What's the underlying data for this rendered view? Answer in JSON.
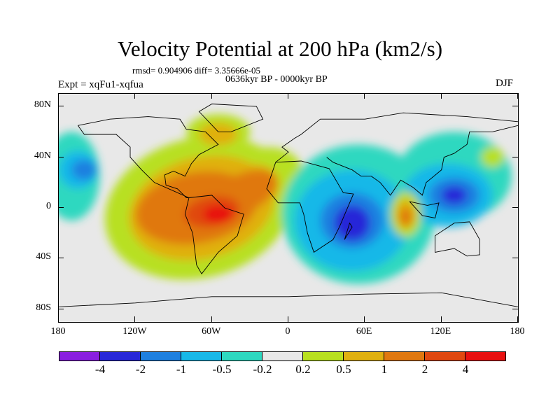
{
  "title": "Velocity Potential at 200 hPa (km2/s)",
  "stats": "rmsd= 0.904906 diff= 3.35666e-05",
  "period": "0636kyr BP - 0000kyr BP",
  "experiment": "Expt = xqFu1-xqfua",
  "season": "DJF",
  "chart_data": {
    "type": "heatmap",
    "title": "Velocity Potential at 200 hPa (km2/s)",
    "projection": "cylindrical equidistant",
    "xlabel": "",
    "ylabel": "",
    "xlim": [
      -180,
      180
    ],
    "ylim": [
      -90,
      90
    ],
    "x_ticks": [
      {
        "value": -180,
        "label": "180"
      },
      {
        "value": -120,
        "label": "120W"
      },
      {
        "value": -60,
        "label": "60W"
      },
      {
        "value": 0,
        "label": "0"
      },
      {
        "value": 60,
        "label": "60E"
      },
      {
        "value": 120,
        "label": "120E"
      },
      {
        "value": 180,
        "label": "180"
      }
    ],
    "y_ticks": [
      {
        "value": 80,
        "label": "80N"
      },
      {
        "value": 40,
        "label": "40N"
      },
      {
        "value": 0,
        "label": "0"
      },
      {
        "value": -40,
        "label": "40S"
      },
      {
        "value": -80,
        "label": "80S"
      }
    ],
    "contour_levels": [
      -4,
      -2,
      -1,
      -0.5,
      -0.2,
      0.2,
      0.5,
      1,
      2,
      4
    ],
    "colorbar_labels": [
      "-4",
      "-2",
      "-1",
      "-0.5",
      "-0.2",
      "0.2",
      "0.5",
      "1",
      "2",
      "4"
    ],
    "colors": [
      "#8a1fe0",
      "#2828d8",
      "#1e80e0",
      "#18b8e8",
      "#2ed8c0",
      "#e8e8e8",
      "#b8e020",
      "#e0b010",
      "#e07810",
      "#e04810",
      "#e81010"
    ],
    "features": [
      {
        "description": "positive maximum over northern South America",
        "lon": -55,
        "lat": -5,
        "value": 4
      },
      {
        "description": "negative minimum over East Africa",
        "lon": 50,
        "lat": -10,
        "value": -4
      },
      {
        "description": "negative minimum over the western Pacific / Philippines",
        "lon": 130,
        "lat": 10,
        "value": -2
      },
      {
        "description": "positive maximum over the eastern Indian Ocean",
        "lon": 90,
        "lat": -5,
        "value": 2
      },
      {
        "description": "negative minimum over the North Pacific",
        "lon": -160,
        "lat": 30,
        "value": -1
      }
    ]
  }
}
